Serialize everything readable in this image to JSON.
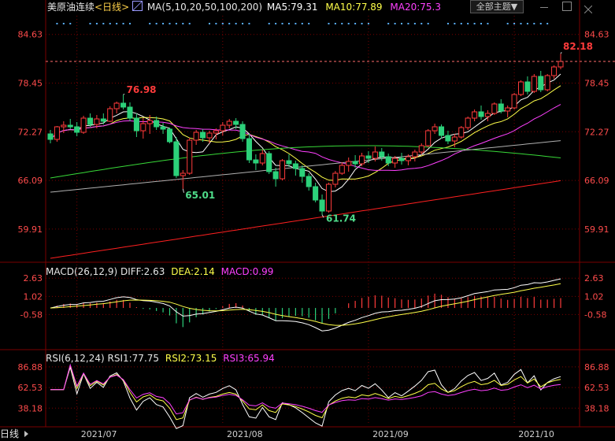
{
  "header": {
    "instrument": "美原油连续",
    "period": "<日线>",
    "ma_label": "MA(5,10,20,50,100,200)",
    "ma5": "MA5:79.31",
    "ma10": "MA10:77.89",
    "ma20": "MA20:75.3",
    "theme_button": "全部主题",
    "theme_arrow": "▼"
  },
  "macd_header": {
    "name": "MACD(26,12,9)",
    "diff": "DIFF:2.63",
    "dea": "DEA:2.14",
    "macd": "MACD:0.99"
  },
  "rsi_header": {
    "name": "RSI(6,12,24)",
    "rsi1": "RSI1:77.75",
    "rsi2": "RSI2:73.15",
    "rsi3": "RSI3:65.94"
  },
  "bottom": {
    "period": "日线",
    "dates": [
      "2021/07",
      "2021/08",
      "2021/09",
      "2021/10"
    ]
  },
  "colors": {
    "up": "#ff3b3b",
    "down": "#2cd17a",
    "ma5": "#ffffff",
    "ma10": "#ffff4a",
    "ma20": "#ff40ff",
    "ma50": "#38d938",
    "ma100": "#b0b0b0",
    "ma200": "#ff2020",
    "axis_text": "#ff4b4b",
    "grid": "#7a0000"
  },
  "chart_data": [
    {
      "type": "candlestick",
      "title": "美原油连续 日线",
      "ylim": [
        56,
        87
      ],
      "y_ticks": [
        "84.63",
        "78.45",
        "72.27",
        "66.09",
        "59.91"
      ],
      "high_label": "82.18",
      "annotations": [
        "76.98",
        "65.01",
        "61.74"
      ],
      "x_labels": [
        "2021/07",
        "2021/08",
        "2021/09",
        "2021/10"
      ],
      "candles": [
        [
          72.0,
          72.5,
          70.8,
          71.3
        ],
        [
          71.3,
          73.0,
          71.0,
          72.9
        ],
        [
          72.9,
          73.6,
          72.1,
          73.1
        ],
        [
          73.1,
          73.9,
          72.6,
          72.9
        ],
        [
          72.9,
          73.5,
          71.7,
          72.2
        ],
        [
          72.2,
          74.3,
          72.0,
          74.0
        ],
        [
          74.0,
          74.6,
          72.9,
          73.2
        ],
        [
          73.2,
          74.4,
          72.7,
          73.9
        ],
        [
          73.9,
          74.6,
          73.2,
          73.6
        ],
        [
          73.6,
          75.5,
          73.5,
          75.2
        ],
        [
          75.2,
          76.1,
          74.6,
          75.9
        ],
        [
          75.9,
          76.98,
          75.1,
          75.4
        ],
        [
          75.4,
          76.0,
          73.6,
          74.0
        ],
        [
          74.0,
          74.6,
          71.6,
          72.4
        ],
        [
          72.4,
          74.0,
          71.4,
          73.3
        ],
        [
          73.3,
          74.4,
          72.0,
          73.7
        ],
        [
          73.7,
          74.2,
          72.5,
          72.9
        ],
        [
          72.9,
          73.4,
          72.0,
          72.6
        ],
        [
          72.6,
          72.8,
          70.8,
          71.0
        ],
        [
          71.0,
          71.6,
          66.4,
          66.7
        ],
        [
          66.7,
          67.4,
          65.01,
          67.0
        ],
        [
          67.0,
          71.5,
          66.8,
          71.2
        ],
        [
          71.2,
          72.5,
          70.6,
          72.2
        ],
        [
          72.2,
          72.6,
          71.0,
          71.5
        ],
        [
          71.5,
          72.4,
          70.8,
          72.1
        ],
        [
          72.1,
          72.7,
          71.3,
          72.4
        ],
        [
          72.4,
          73.5,
          71.8,
          73.1
        ],
        [
          73.1,
          73.9,
          72.7,
          73.6
        ],
        [
          73.6,
          74.0,
          72.6,
          73.2
        ],
        [
          73.2,
          73.6,
          71.0,
          71.4
        ],
        [
          71.4,
          72.0,
          68.3,
          68.7
        ],
        [
          68.7,
          69.4,
          67.4,
          68.3
        ],
        [
          68.3,
          70.0,
          68.0,
          69.5
        ],
        [
          69.5,
          69.8,
          66.9,
          67.2
        ],
        [
          67.2,
          67.7,
          65.3,
          66.3
        ],
        [
          66.3,
          68.8,
          66.1,
          68.6
        ],
        [
          68.6,
          69.4,
          67.8,
          68.2
        ],
        [
          68.2,
          68.6,
          66.7,
          67.6
        ],
        [
          67.6,
          68.0,
          65.8,
          66.6
        ],
        [
          66.6,
          67.0,
          64.8,
          65.3
        ],
        [
          65.3,
          65.8,
          63.3,
          63.6
        ],
        [
          63.6,
          64.3,
          61.74,
          62.2
        ],
        [
          62.2,
          65.8,
          62.0,
          65.6
        ],
        [
          65.6,
          67.3,
          65.2,
          67.0
        ],
        [
          67.0,
          68.4,
          66.8,
          68.0
        ],
        [
          68.0,
          69.0,
          67.2,
          68.5
        ],
        [
          68.5,
          69.3,
          67.7,
          68.2
        ],
        [
          68.2,
          69.6,
          67.9,
          69.2
        ],
        [
          69.2,
          69.8,
          68.3,
          68.9
        ],
        [
          68.9,
          70.4,
          68.5,
          69.7
        ],
        [
          69.7,
          70.2,
          68.6,
          69.1
        ],
        [
          69.1,
          69.5,
          67.9,
          68.3
        ],
        [
          68.3,
          69.2,
          67.7,
          68.9
        ],
        [
          68.9,
          69.6,
          68.1,
          68.6
        ],
        [
          68.6,
          69.4,
          68.0,
          69.1
        ],
        [
          69.1,
          70.0,
          68.5,
          69.7
        ],
        [
          69.7,
          70.8,
          69.4,
          70.5
        ],
        [
          70.5,
          72.6,
          70.3,
          72.4
        ],
        [
          72.4,
          73.3,
          72.0,
          72.9
        ],
        [
          72.9,
          73.2,
          71.4,
          71.8
        ],
        [
          71.8,
          72.4,
          70.7,
          71.1
        ],
        [
          71.1,
          72.0,
          70.3,
          71.6
        ],
        [
          71.6,
          73.0,
          71.4,
          72.8
        ],
        [
          72.8,
          74.2,
          72.5,
          74.0
        ],
        [
          74.0,
          75.1,
          73.6,
          74.8
        ],
        [
          74.8,
          75.6,
          73.8,
          74.2
        ],
        [
          74.2,
          75.0,
          73.6,
          74.6
        ],
        [
          74.6,
          76.0,
          74.4,
          75.8
        ],
        [
          75.8,
          76.4,
          74.6,
          74.9
        ],
        [
          74.9,
          75.6,
          74.1,
          75.3
        ],
        [
          75.3,
          77.2,
          75.1,
          77.0
        ],
        [
          77.0,
          78.8,
          76.8,
          78.6
        ],
        [
          78.6,
          79.3,
          77.0,
          77.4
        ],
        [
          77.4,
          79.6,
          77.2,
          79.3
        ],
        [
          79.3,
          80.0,
          77.3,
          77.6
        ],
        [
          77.6,
          79.6,
          77.4,
          79.4
        ],
        [
          79.4,
          80.7,
          79.0,
          80.5
        ],
        [
          80.5,
          82.18,
          80.2,
          81.2
        ]
      ]
    },
    {
      "type": "bar",
      "title": "MACD(26,12,9)",
      "y_ticks": [
        "2.63",
        "1.02",
        "-0.58"
      ],
      "ylim": [
        -3.4,
        3.2
      ]
    },
    {
      "type": "line",
      "title": "RSI(6,12,24)",
      "y_ticks": [
        "86.88",
        "62.53",
        "38.18"
      ],
      "ylim": [
        18,
        97
      ]
    }
  ]
}
